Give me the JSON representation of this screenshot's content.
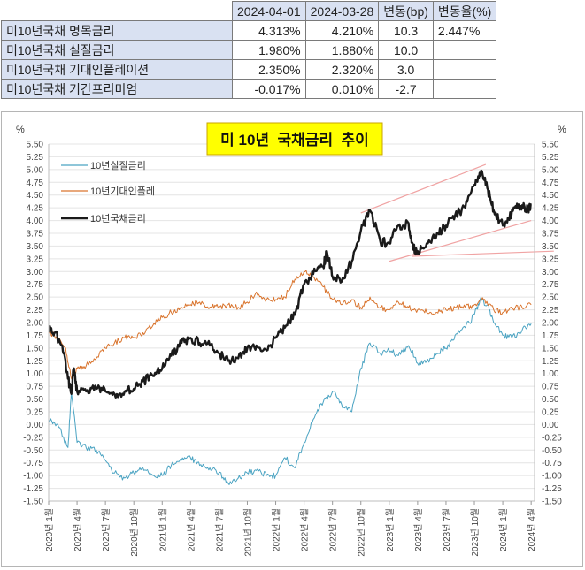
{
  "table": {
    "headers": [
      "",
      "2024-04-01",
      "2024-03-28",
      "변동(bp)",
      "변동율(%)"
    ],
    "rows": [
      {
        "label": "미10년국채 명목금리",
        "v1": "4.313%",
        "v2": "4.210%",
        "bp": "10.3",
        "pct": "2.447%"
      },
      {
        "label": "미10년국채 실질금리",
        "v1": "1.980%",
        "v2": "1.880%",
        "bp": "10.0",
        "pct": ""
      },
      {
        "label": "미10년국채 기대인플레이션",
        "v1": "2.350%",
        "v2": "2.320%",
        "bp": "3.0",
        "pct": ""
      },
      {
        "label": "미10년국채 기간프리미엄",
        "v1": "-0.017%",
        "v2": "0.010%",
        "bp": "-2.7",
        "pct": ""
      }
    ]
  },
  "chart_data": {
    "type": "line",
    "title": "미 10년  국채금리  추이",
    "unit_left": "%",
    "unit_right": "%",
    "ylim": [
      -1.5,
      5.5
    ],
    "ytick_step": 0.25,
    "x_range": [
      "2020-01",
      "2024-04"
    ],
    "xtick_labels": [
      "2020년 1월",
      "2020년 4월",
      "2020년 7월",
      "2020년 10월",
      "2021년 1월",
      "2021년 4월",
      "2021년 7월",
      "2021년 10월",
      "2022년 1월",
      "2022년 4월",
      "2022년 7월",
      "2022년 10월",
      "2023년 1월",
      "2023년 4월",
      "2023년 7월",
      "2023년 10월",
      "2024년 1월",
      "2024년 4월"
    ],
    "legend_position": "top-left",
    "series": [
      {
        "name": "10년실질금리",
        "color": "#4aa3c2",
        "width": 1,
        "points": [
          [
            2020.0,
            0.1
          ],
          [
            2020.08,
            0.0
          ],
          [
            2020.17,
            -0.45
          ],
          [
            2020.2,
            0.65
          ],
          [
            2020.25,
            -0.35
          ],
          [
            2020.33,
            -0.45
          ],
          [
            2020.42,
            -0.5
          ],
          [
            2020.5,
            -0.7
          ],
          [
            2020.58,
            -0.95
          ],
          [
            2020.67,
            -1.05
          ],
          [
            2020.75,
            -0.95
          ],
          [
            2020.83,
            -0.85
          ],
          [
            2020.92,
            -1.0
          ],
          [
            2021.0,
            -1.0
          ],
          [
            2021.08,
            -0.8
          ],
          [
            2021.17,
            -0.7
          ],
          [
            2021.25,
            -0.65
          ],
          [
            2021.33,
            -0.8
          ],
          [
            2021.42,
            -0.85
          ],
          [
            2021.5,
            -0.95
          ],
          [
            2021.58,
            -1.15
          ],
          [
            2021.67,
            -1.05
          ],
          [
            2021.75,
            -0.95
          ],
          [
            2021.83,
            -0.9
          ],
          [
            2021.92,
            -1.0
          ],
          [
            2022.0,
            -1.0
          ],
          [
            2022.08,
            -0.65
          ],
          [
            2022.17,
            -0.85
          ],
          [
            2022.25,
            -0.35
          ],
          [
            2022.33,
            0.1
          ],
          [
            2022.42,
            0.45
          ],
          [
            2022.5,
            0.65
          ],
          [
            2022.58,
            0.4
          ],
          [
            2022.67,
            0.25
          ],
          [
            2022.75,
            1.1
          ],
          [
            2022.83,
            1.6
          ],
          [
            2022.92,
            1.4
          ],
          [
            2023.0,
            1.45
          ],
          [
            2023.08,
            1.35
          ],
          [
            2023.17,
            1.55
          ],
          [
            2023.25,
            1.2
          ],
          [
            2023.33,
            1.25
          ],
          [
            2023.42,
            1.4
          ],
          [
            2023.5,
            1.5
          ],
          [
            2023.58,
            1.75
          ],
          [
            2023.67,
            1.9
          ],
          [
            2023.75,
            2.15
          ],
          [
            2023.8,
            2.45
          ],
          [
            2023.87,
            2.35
          ],
          [
            2023.92,
            2.0
          ],
          [
            2024.0,
            1.75
          ],
          [
            2024.08,
            1.7
          ],
          [
            2024.17,
            1.85
          ],
          [
            2024.25,
            1.98
          ]
        ]
      },
      {
        "name": "10년기대인플레",
        "color": "#d9742d",
        "width": 1,
        "points": [
          [
            2020.0,
            1.8
          ],
          [
            2020.05,
            1.75
          ],
          [
            2020.15,
            1.5
          ],
          [
            2020.2,
            0.9
          ],
          [
            2020.25,
            1.1
          ],
          [
            2020.33,
            1.15
          ],
          [
            2020.42,
            1.3
          ],
          [
            2020.5,
            1.5
          ],
          [
            2020.58,
            1.6
          ],
          [
            2020.67,
            1.7
          ],
          [
            2020.75,
            1.7
          ],
          [
            2020.83,
            1.8
          ],
          [
            2020.92,
            1.95
          ],
          [
            2021.0,
            2.1
          ],
          [
            2021.08,
            2.2
          ],
          [
            2021.17,
            2.3
          ],
          [
            2021.25,
            2.35
          ],
          [
            2021.33,
            2.4
          ],
          [
            2021.42,
            2.3
          ],
          [
            2021.5,
            2.3
          ],
          [
            2021.58,
            2.35
          ],
          [
            2021.67,
            2.3
          ],
          [
            2021.75,
            2.4
          ],
          [
            2021.83,
            2.6
          ],
          [
            2021.92,
            2.45
          ],
          [
            2022.0,
            2.45
          ],
          [
            2022.08,
            2.5
          ],
          [
            2022.17,
            2.85
          ],
          [
            2022.25,
            3.0
          ],
          [
            2022.33,
            2.9
          ],
          [
            2022.42,
            2.7
          ],
          [
            2022.5,
            2.45
          ],
          [
            2022.58,
            2.35
          ],
          [
            2022.67,
            2.45
          ],
          [
            2022.75,
            2.3
          ],
          [
            2022.83,
            2.5
          ],
          [
            2022.92,
            2.3
          ],
          [
            2023.0,
            2.25
          ],
          [
            2023.08,
            2.4
          ],
          [
            2023.17,
            2.3
          ],
          [
            2023.25,
            2.25
          ],
          [
            2023.33,
            2.2
          ],
          [
            2023.42,
            2.2
          ],
          [
            2023.5,
            2.25
          ],
          [
            2023.58,
            2.3
          ],
          [
            2023.67,
            2.3
          ],
          [
            2023.75,
            2.35
          ],
          [
            2023.83,
            2.45
          ],
          [
            2023.92,
            2.25
          ],
          [
            2024.0,
            2.2
          ],
          [
            2024.08,
            2.3
          ],
          [
            2024.17,
            2.3
          ],
          [
            2024.25,
            2.35
          ]
        ]
      },
      {
        "name": "10년국채금리",
        "color": "#1a1a1a",
        "width": 2.4,
        "points": [
          [
            2020.0,
            1.85
          ],
          [
            2020.05,
            1.8
          ],
          [
            2020.12,
            1.55
          ],
          [
            2020.17,
            0.9
          ],
          [
            2020.2,
            0.6
          ],
          [
            2020.22,
            1.1
          ],
          [
            2020.25,
            0.65
          ],
          [
            2020.33,
            0.65
          ],
          [
            2020.42,
            0.7
          ],
          [
            2020.5,
            0.65
          ],
          [
            2020.58,
            0.6
          ],
          [
            2020.67,
            0.65
          ],
          [
            2020.75,
            0.7
          ],
          [
            2020.83,
            0.85
          ],
          [
            2020.92,
            0.95
          ],
          [
            2021.0,
            1.1
          ],
          [
            2021.08,
            1.35
          ],
          [
            2021.17,
            1.6
          ],
          [
            2021.25,
            1.7
          ],
          [
            2021.33,
            1.6
          ],
          [
            2021.42,
            1.55
          ],
          [
            2021.5,
            1.4
          ],
          [
            2021.58,
            1.25
          ],
          [
            2021.67,
            1.3
          ],
          [
            2021.75,
            1.5
          ],
          [
            2021.83,
            1.55
          ],
          [
            2021.92,
            1.45
          ],
          [
            2022.0,
            1.7
          ],
          [
            2022.08,
            1.9
          ],
          [
            2022.17,
            2.15
          ],
          [
            2022.25,
            2.75
          ],
          [
            2022.33,
            2.95
          ],
          [
            2022.42,
            3.1
          ],
          [
            2022.45,
            3.4
          ],
          [
            2022.5,
            2.9
          ],
          [
            2022.58,
            2.8
          ],
          [
            2022.67,
            3.2
          ],
          [
            2022.75,
            3.8
          ],
          [
            2022.83,
            4.2
          ],
          [
            2022.92,
            3.6
          ],
          [
            2023.0,
            3.55
          ],
          [
            2023.08,
            3.9
          ],
          [
            2023.17,
            3.95
          ],
          [
            2023.21,
            3.45
          ],
          [
            2023.25,
            3.4
          ],
          [
            2023.33,
            3.55
          ],
          [
            2023.42,
            3.75
          ],
          [
            2023.5,
            3.9
          ],
          [
            2023.58,
            4.1
          ],
          [
            2023.67,
            4.25
          ],
          [
            2023.75,
            4.7
          ],
          [
            2023.81,
            4.98
          ],
          [
            2023.87,
            4.6
          ],
          [
            2023.92,
            4.2
          ],
          [
            2024.0,
            3.9
          ],
          [
            2024.05,
            4.05
          ],
          [
            2024.12,
            4.25
          ],
          [
            2024.17,
            4.3
          ],
          [
            2024.21,
            4.2
          ],
          [
            2024.25,
            4.31
          ]
        ]
      }
    ],
    "trend_lines": [
      {
        "color": "#f0a3a3",
        "from": [
          2022.75,
          4.15
        ],
        "to": [
          2023.85,
          5.1
        ]
      },
      {
        "color": "#f0a3a3",
        "from": [
          2023.0,
          3.2
        ],
        "to": [
          2024.25,
          4.0
        ]
      },
      {
        "color": "#f0a3a3",
        "from": [
          2023.2,
          3.3
        ],
        "to": [
          2024.45,
          3.4
        ]
      }
    ]
  }
}
